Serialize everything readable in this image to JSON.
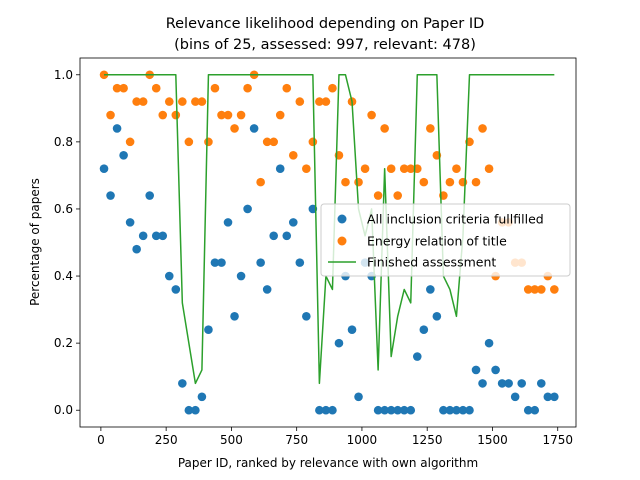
{
  "chart_data": {
    "type": "scatter",
    "title": "Relevance likelihood depending on Paper ID",
    "subtitle": "(bins of 25, assessed: 997, relevant: 478)",
    "xlabel": "Paper ID, ranked by relevance with own algorithm",
    "ylabel": "Percentage of papers",
    "xlim": [
      -80,
      1820
    ],
    "ylim": [
      -0.05,
      1.05
    ],
    "xticks": [
      0,
      250,
      500,
      750,
      1000,
      1250,
      1500,
      1750
    ],
    "yticks": [
      0.0,
      0.2,
      0.4,
      0.6,
      0.8,
      1.0
    ],
    "grid": false,
    "legend_position": "center-right",
    "series": [
      {
        "name": "All inclusion criteria fullfilled",
        "kind": "scatter",
        "color": "#1f77b4",
        "x": [
          12,
          37,
          62,
          87,
          112,
          137,
          162,
          187,
          212,
          237,
          262,
          287,
          312,
          337,
          362,
          387,
          412,
          437,
          462,
          487,
          512,
          537,
          562,
          587,
          612,
          637,
          662,
          687,
          712,
          737,
          762,
          787,
          812,
          837,
          862,
          887,
          912,
          937,
          962,
          987,
          1012,
          1037,
          1062,
          1087,
          1112,
          1137,
          1162,
          1187,
          1212,
          1237,
          1262,
          1287,
          1312,
          1337,
          1362,
          1387,
          1412,
          1437,
          1462,
          1487,
          1512,
          1537,
          1562,
          1587,
          1612,
          1637,
          1662,
          1687,
          1712,
          1737
        ],
        "y": [
          0.72,
          0.64,
          0.84,
          0.76,
          0.56,
          0.48,
          0.52,
          0.64,
          0.52,
          0.52,
          0.4,
          0.36,
          0.08,
          0.0,
          0.0,
          0.04,
          0.24,
          0.44,
          0.44,
          0.56,
          0.28,
          0.4,
          0.6,
          0.84,
          0.44,
          0.36,
          0.52,
          0.72,
          0.52,
          0.56,
          0.44,
          0.28,
          0.6,
          0.0,
          0.0,
          0.0,
          0.2,
          0.4,
          0.24,
          0.04,
          0.44,
          0.4,
          0.0,
          0.0,
          0.0,
          0.0,
          0.0,
          0.0,
          0.16,
          0.24,
          0.36,
          0.28,
          0.0,
          0.0,
          0.0,
          0.0,
          0.0,
          0.12,
          0.08,
          0.2,
          0.12,
          0.08,
          0.08,
          0.04,
          0.08,
          0.0,
          0.0,
          0.08,
          0.04,
          0.04
        ]
      },
      {
        "name": "Energy relation of title",
        "kind": "scatter",
        "color": "#ff7f0e",
        "x": [
          12,
          37,
          62,
          87,
          112,
          137,
          162,
          187,
          212,
          237,
          262,
          287,
          312,
          337,
          362,
          387,
          412,
          437,
          462,
          487,
          512,
          537,
          562,
          587,
          612,
          637,
          662,
          687,
          712,
          737,
          762,
          787,
          812,
          837,
          862,
          887,
          912,
          937,
          962,
          987,
          1012,
          1037,
          1062,
          1087,
          1112,
          1137,
          1162,
          1187,
          1212,
          1237,
          1262,
          1287,
          1312,
          1337,
          1362,
          1387,
          1412,
          1437,
          1462,
          1487,
          1512,
          1537,
          1562,
          1587,
          1612,
          1637,
          1662,
          1687,
          1712,
          1737
        ],
        "y": [
          1.0,
          0.88,
          0.96,
          0.96,
          0.8,
          0.92,
          0.92,
          1.0,
          0.96,
          0.88,
          0.92,
          0.88,
          0.92,
          0.8,
          0.92,
          0.92,
          0.8,
          0.96,
          0.88,
          0.88,
          0.84,
          0.88,
          0.96,
          1.0,
          0.68,
          0.8,
          0.8,
          0.88,
          0.96,
          0.76,
          0.92,
          0.72,
          0.8,
          0.92,
          0.92,
          0.96,
          0.76,
          0.68,
          0.92,
          0.68,
          0.72,
          0.88,
          0.64,
          0.84,
          0.72,
          0.64,
          0.72,
          0.72,
          0.72,
          0.68,
          0.84,
          0.76,
          0.64,
          0.68,
          0.72,
          0.68,
          0.8,
          0.68,
          0.84,
          0.72,
          0.4,
          0.56,
          0.56,
          0.44,
          0.44,
          0.36,
          0.36,
          0.36,
          0.4,
          0.36
        ]
      },
      {
        "name": "Finished assessment",
        "kind": "line",
        "color": "#2ca02c",
        "x": [
          12,
          37,
          62,
          87,
          112,
          137,
          162,
          187,
          212,
          237,
          262,
          287,
          312,
          337,
          362,
          387,
          412,
          437,
          462,
          487,
          512,
          537,
          562,
          587,
          612,
          637,
          662,
          687,
          712,
          737,
          762,
          787,
          812,
          837,
          862,
          887,
          912,
          937,
          962,
          987,
          1012,
          1037,
          1062,
          1087,
          1112,
          1137,
          1162,
          1187,
          1212,
          1237,
          1262,
          1287,
          1312,
          1337,
          1362,
          1387,
          1412,
          1437,
          1462,
          1487,
          1512,
          1537,
          1562,
          1587,
          1612,
          1637,
          1662,
          1687,
          1712,
          1737
        ],
        "y": [
          1.0,
          1.0,
          1.0,
          1.0,
          1.0,
          1.0,
          1.0,
          1.0,
          1.0,
          1.0,
          1.0,
          1.0,
          0.32,
          0.2,
          0.08,
          0.12,
          1.0,
          1.0,
          1.0,
          1.0,
          1.0,
          1.0,
          1.0,
          1.0,
          1.0,
          1.0,
          1.0,
          1.0,
          1.0,
          1.0,
          1.0,
          1.0,
          1.0,
          0.08,
          0.4,
          0.36,
          1.0,
          1.0,
          0.92,
          0.6,
          0.52,
          0.6,
          0.12,
          0.72,
          0.16,
          0.28,
          0.36,
          0.32,
          1.0,
          1.0,
          1.0,
          1.0,
          0.4,
          0.36,
          0.28,
          0.52,
          1.0,
          1.0,
          1.0,
          1.0,
          1.0,
          1.0,
          1.0,
          1.0,
          1.0,
          1.0,
          1.0,
          1.0,
          1.0,
          1.0
        ]
      }
    ]
  }
}
